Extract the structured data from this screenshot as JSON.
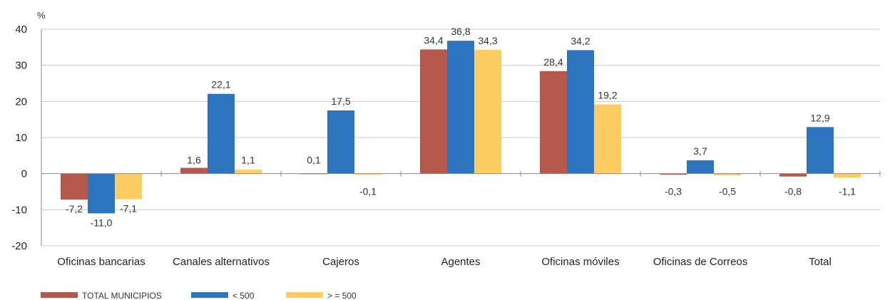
{
  "chart_data": {
    "type": "bar",
    "unit": "%",
    "categories": [
      "Oficinas bancarias",
      "Canales alternativos",
      "Cajeros",
      "Agentes",
      "Oficinas móviles",
      "Oficinas de Correos",
      "Total"
    ],
    "series": [
      {
        "name": "TOTAL MUNICIPIOS",
        "color": "#b5574a",
        "values": [
          -7.2,
          1.6,
          0.1,
          34.4,
          28.4,
          -0.3,
          -0.8
        ],
        "labels": [
          "-7,2",
          "1,6",
          "0,1",
          "34,4",
          "28,4",
          "-0,3",
          "-0,8"
        ]
      },
      {
        "name": "< 500",
        "color": "#2e75c0",
        "values": [
          -11.0,
          22.1,
          17.5,
          36.8,
          34.2,
          3.7,
          12.9
        ],
        "labels": [
          "-11,0",
          "22,1",
          "17,5",
          "36,8",
          "34,2",
          "3,7",
          "12,9"
        ]
      },
      {
        "name": "> = 500",
        "color": "#fdcc63",
        "values": [
          -7.1,
          1.1,
          -0.1,
          34.3,
          19.2,
          -0.5,
          -1.1
        ],
        "labels": [
          "-7,1",
          "1,1",
          "-0,1",
          "34,3",
          "19,2",
          "-0,5",
          "-1,1"
        ]
      }
    ],
    "ylim": [
      -20,
      40
    ],
    "yticks": [
      -20,
      -10,
      0,
      10,
      20,
      30,
      40
    ],
    "grid": true,
    "legend": "bottom-left"
  }
}
